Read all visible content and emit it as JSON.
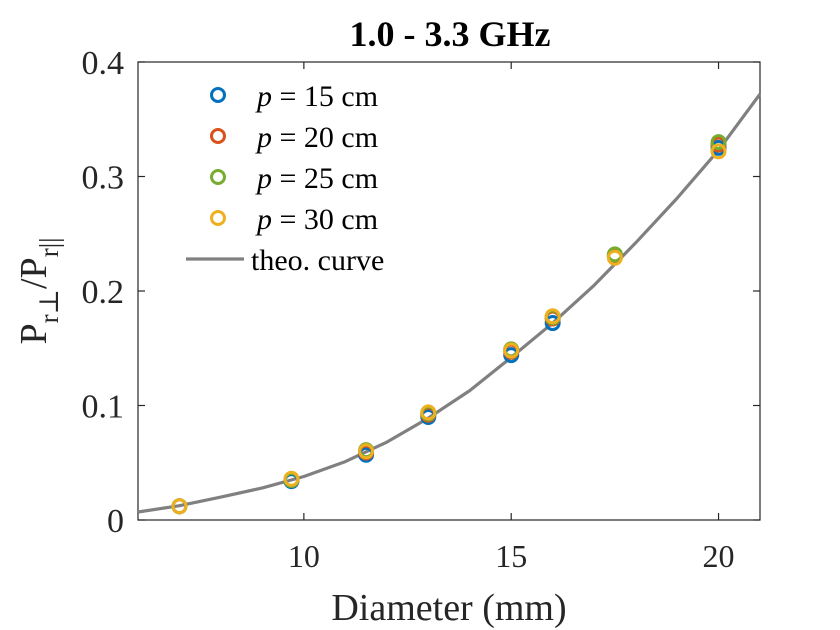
{
  "colors": {
    "series_15": "#0072BD",
    "series_20": "#D95319",
    "series_25": "#77AC30",
    "series_30": "#EDB120",
    "theory": "#808080",
    "axes": "#262626"
  },
  "chart_data": {
    "type": "scatter",
    "title": "1.0 - 3.3 GHz",
    "xlabel": "Diameter (mm)",
    "ylabel": {
      "base1": "P",
      "sub1": "r⊥",
      "slash": "/P",
      "sub2": "r||"
    },
    "xlim": [
      6,
      21
    ],
    "ylim": [
      0,
      0.4
    ],
    "x_ticks": [
      {
        "value": 10,
        "label": "10"
      },
      {
        "value": 15,
        "label": "15"
      },
      {
        "value": 20,
        "label": "20"
      }
    ],
    "y_ticks": [
      {
        "value": 0,
        "label": "0"
      },
      {
        "value": 0.1,
        "label": "0.1"
      },
      {
        "value": 0.2,
        "label": "0.2"
      },
      {
        "value": 0.3,
        "label": "0.3"
      },
      {
        "value": 0.4,
        "label": "0.4"
      }
    ],
    "grid": false,
    "legend_position": "top-left",
    "series": [
      {
        "name": "p = 15 cm",
        "var": "p",
        "rest": " = 15 cm",
        "color_key": "series_15",
        "x": [
          7.0,
          9.7,
          11.5,
          13.0,
          15.0,
          16.0,
          17.5,
          20.0
        ],
        "y": [
          0.012,
          0.034,
          0.057,
          0.09,
          0.144,
          0.172,
          0.23,
          0.325
        ]
      },
      {
        "name": "p = 20 cm",
        "var": "p",
        "rest": " = 20 cm",
        "color_key": "series_20",
        "x": [
          7.0,
          9.7,
          11.5,
          13.0,
          15.0,
          16.0,
          17.5,
          20.0
        ],
        "y": [
          0.012,
          0.035,
          0.059,
          0.092,
          0.147,
          0.176,
          0.231,
          0.328
        ]
      },
      {
        "name": "p = 25 cm",
        "var": "p",
        "rest": " = 25 cm",
        "color_key": "series_25",
        "x": [
          7.0,
          9.7,
          11.5,
          13.0,
          15.0,
          16.0,
          17.5,
          20.0
        ],
        "y": [
          0.012,
          0.035,
          0.061,
          0.093,
          0.149,
          0.177,
          0.232,
          0.33
        ]
      },
      {
        "name": "p = 30 cm",
        "var": "p",
        "rest": " = 30 cm",
        "color_key": "series_30",
        "x": [
          7.0,
          9.7,
          11.5,
          13.0,
          15.0,
          16.0,
          17.5,
          20.0
        ],
        "y": [
          0.012,
          0.036,
          0.06,
          0.094,
          0.148,
          0.178,
          0.229,
          0.322
        ]
      }
    ],
    "theory_curve": {
      "name": "theo. curve",
      "color_key": "theory",
      "x": [
        6.0,
        7.0,
        8.0,
        9.0,
        10.0,
        11.0,
        12.0,
        13.0,
        14.0,
        15.0,
        16.0,
        17.0,
        18.0,
        19.0,
        20.0,
        21.0
      ],
      "y": [
        0.007,
        0.0125,
        0.02,
        0.028,
        0.038,
        0.051,
        0.068,
        0.089,
        0.113,
        0.142,
        0.172,
        0.205,
        0.242,
        0.281,
        0.323,
        0.372
      ]
    }
  }
}
